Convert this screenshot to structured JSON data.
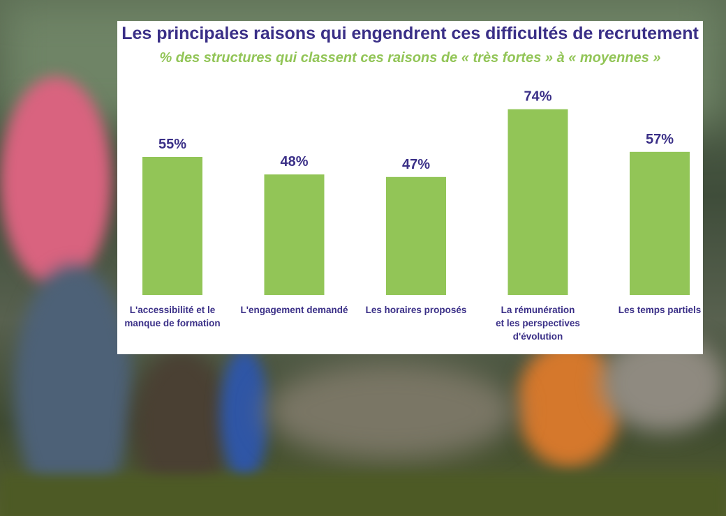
{
  "chart_data": {
    "type": "bar",
    "title": "Les principales raisons qui engendrent ces difficultés de recrutement",
    "subtitle": "% des structures qui classent ces raisons de « très fortes » à « moyennes »",
    "categories": [
      [
        "L'accessibilité et le",
        "manque de formation"
      ],
      [
        "L'engagement demandé"
      ],
      [
        "Les horaires proposés"
      ],
      [
        "La rémunération",
        "et les perspectives",
        "d'évolution"
      ],
      [
        "Les temps partiels"
      ]
    ],
    "values": [
      55,
      48,
      47,
      74,
      57
    ],
    "value_labels": [
      "55%",
      "48%",
      "47%",
      "74%",
      "57%"
    ],
    "ylim": [
      0,
      100
    ],
    "grid": false,
    "legend": "none",
    "colors": {
      "bar": "#92c557",
      "title": "#3a2f87",
      "subtitle": "#92c557",
      "labels": "#3a2f87"
    }
  }
}
